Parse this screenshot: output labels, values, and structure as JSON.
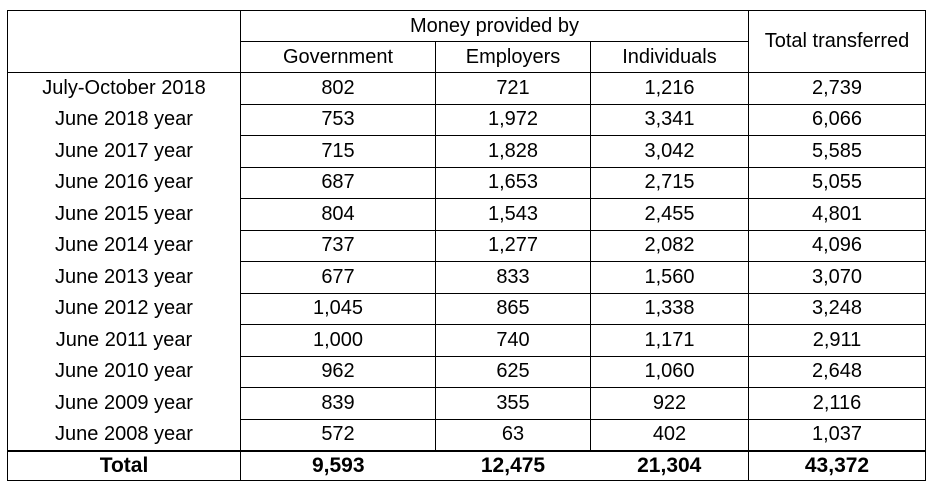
{
  "chart_data": {
    "type": "table",
    "header": {
      "group_label": "Money provided by",
      "columns": [
        "Government",
        "Employers",
        "Individuals"
      ],
      "total_label": "Total transferred"
    },
    "rows": [
      {
        "label": "July-October 2018",
        "values": [
          "802",
          "721",
          "1,216",
          "2,739"
        ]
      },
      {
        "label": "June 2018 year",
        "values": [
          "753",
          "1,972",
          "3,341",
          "6,066"
        ]
      },
      {
        "label": "June 2017 year",
        "values": [
          "715",
          "1,828",
          "3,042",
          "5,585"
        ]
      },
      {
        "label": "June 2016 year",
        "values": [
          "687",
          "1,653",
          "2,715",
          "5,055"
        ]
      },
      {
        "label": "June 2015 year",
        "values": [
          "804",
          "1,543",
          "2,455",
          "4,801"
        ]
      },
      {
        "label": "June 2014 year",
        "values": [
          "737",
          "1,277",
          "2,082",
          "4,096"
        ]
      },
      {
        "label": "June 2013 year",
        "values": [
          "677",
          "833",
          "1,560",
          "3,070"
        ]
      },
      {
        "label": "June 2012 year",
        "values": [
          "1,045",
          "865",
          "1,338",
          "3,248"
        ]
      },
      {
        "label": "June 2011 year",
        "values": [
          "1,000",
          "740",
          "1,171",
          "2,911"
        ]
      },
      {
        "label": "June 2010 year",
        "values": [
          "962",
          "625",
          "1,060",
          "2,648"
        ]
      },
      {
        "label": "June 2009 year",
        "values": [
          "839",
          "355",
          "922",
          "2,116"
        ]
      },
      {
        "label": "June 2008 year",
        "values": [
          "572",
          "63",
          "402",
          "1,037"
        ]
      }
    ],
    "total_row": {
      "label": "Total",
      "values": [
        "9,593",
        "12,475",
        "21,304",
        "43,372"
      ]
    }
  }
}
